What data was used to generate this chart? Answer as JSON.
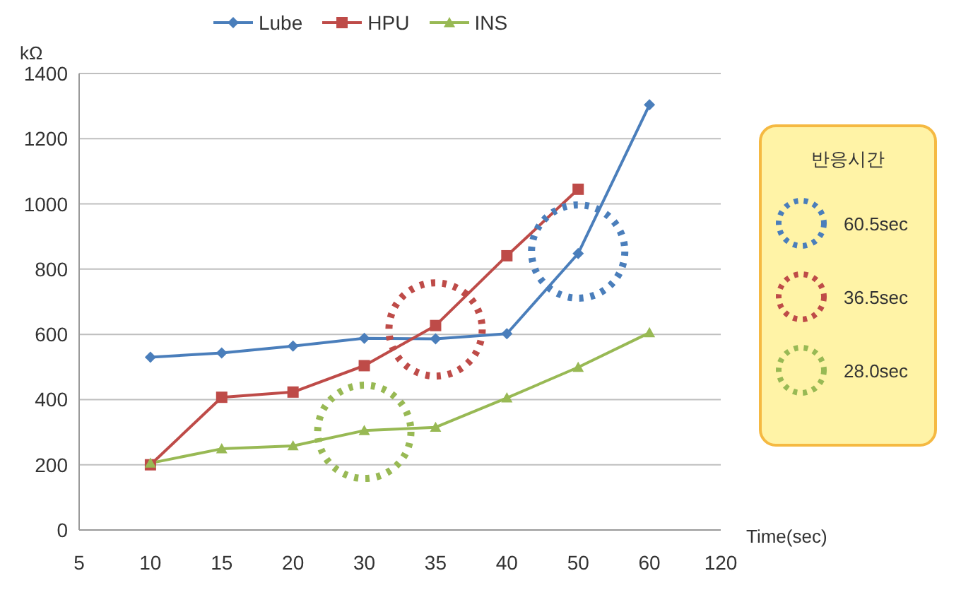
{
  "chart_data": {
    "type": "line",
    "ylabel": "kΩ",
    "xlabel": "Time(sec)",
    "categories": [
      "5",
      "10",
      "15",
      "20",
      "30",
      "35",
      "40",
      "50",
      "60",
      "120"
    ],
    "series": [
      {
        "name": "Lube",
        "color": "#4a7ebb",
        "marker": "diamond",
        "values": [
          null,
          530,
          543,
          564,
          588,
          586,
          602,
          848,
          1304,
          null
        ]
      },
      {
        "name": "HPU",
        "color": "#be4b48",
        "marker": "square",
        "values": [
          null,
          200,
          407,
          423,
          504,
          627,
          841,
          1045,
          null,
          null
        ]
      },
      {
        "name": "INS",
        "color": "#98b954",
        "marker": "triangle",
        "values": [
          null,
          205,
          249,
          258,
          305,
          315,
          405,
          499,
          605,
          null
        ]
      }
    ],
    "ylim": [
      0,
      1400
    ],
    "yticks": [
      0,
      200,
      400,
      600,
      800,
      1000,
      1200,
      1400
    ],
    "grid": "y",
    "legend": "top",
    "annotations": [
      "반응시간",
      "60.5sec",
      "36.5sec",
      "28.0sec"
    ]
  }
}
